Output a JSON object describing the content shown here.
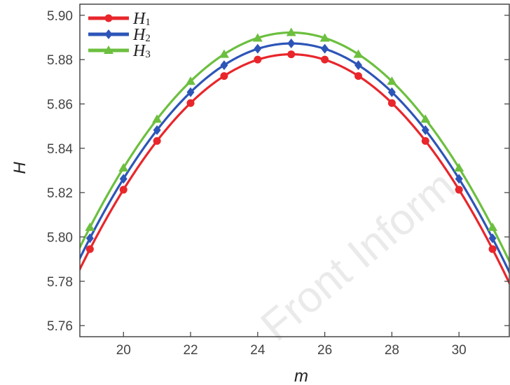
{
  "chart_data": {
    "type": "line",
    "xlabel": "m",
    "ylabel": "H",
    "xlim": [
      18.7,
      31.5
    ],
    "ylim": [
      5.755,
      5.905
    ],
    "x_ticks": [
      20,
      22,
      24,
      26,
      28,
      30
    ],
    "y_ticks": [
      5.76,
      5.78,
      5.8,
      5.82,
      5.84,
      5.86,
      5.88,
      5.9
    ],
    "x_tick_labels": [
      "20",
      "22",
      "24",
      "26",
      "28",
      "30"
    ],
    "y_tick_labels": [
      "5.76",
      "5.78",
      "5.80",
      "5.82",
      "5.84",
      "5.86",
      "5.88",
      "5.90"
    ],
    "legend_position": "top-left",
    "grid": false,
    "x": [
      19,
      20,
      21,
      22,
      23,
      24,
      25,
      26,
      27,
      28,
      29,
      30,
      31
    ],
    "series": [
      {
        "name": "H",
        "subscript": "1",
        "color": "#e8262b",
        "marker": "circle",
        "values": [
          5.7945,
          5.8213,
          5.8433,
          5.8604,
          5.8726,
          5.88,
          5.8824,
          5.88,
          5.8726,
          5.8604,
          5.8433,
          5.8213,
          5.7945
        ]
      },
      {
        "name": "H",
        "subscript": "2",
        "color": "#2d55b8",
        "marker": "diamond",
        "values": [
          5.7994,
          5.8262,
          5.8482,
          5.8653,
          5.8775,
          5.8849,
          5.8873,
          5.8849,
          5.8775,
          5.8653,
          5.8482,
          5.8262,
          5.7994
        ]
      },
      {
        "name": "H",
        "subscript": "3",
        "color": "#6cbf3f",
        "marker": "triangle",
        "values": [
          5.8043,
          5.8311,
          5.8531,
          5.8702,
          5.8824,
          5.8897,
          5.8922,
          5.8897,
          5.8824,
          5.8702,
          5.8531,
          5.8311,
          5.8043
        ]
      }
    ]
  },
  "watermark": "Front Inform"
}
